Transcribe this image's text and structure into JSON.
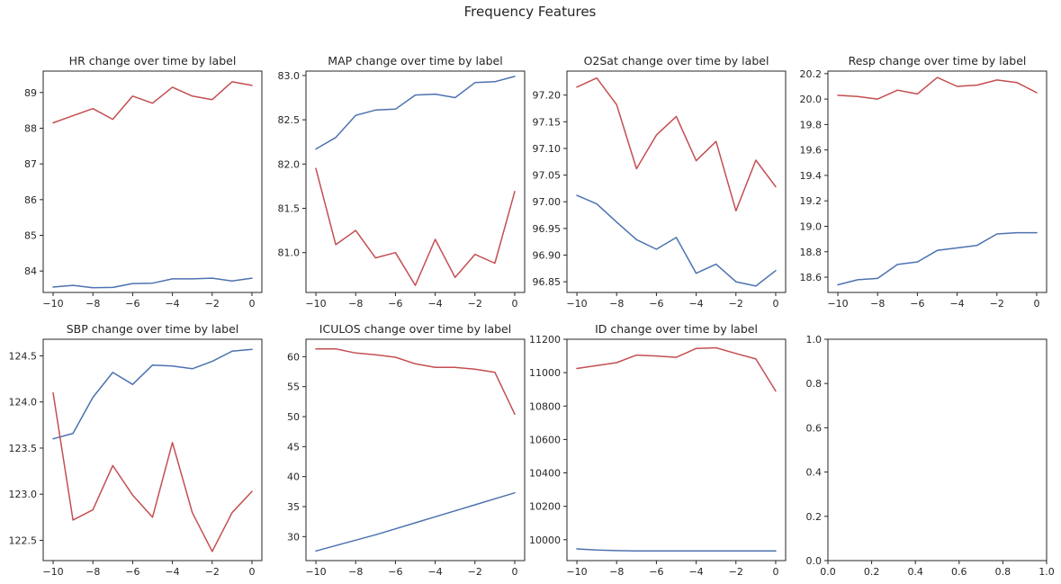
{
  "figure": {
    "title": "Frequency Features"
  },
  "colors": {
    "series_a": "#c44e52",
    "series_b": "#4c72b0"
  },
  "chart_data": [
    {
      "type": "line",
      "title": "HR change over time by label",
      "xlabel": "",
      "ylabel": "",
      "xlim": [
        -10.5,
        0.5
      ],
      "ylim": [
        83.4,
        89.6
      ],
      "xticks": [
        -10,
        -8,
        -6,
        -4,
        -2,
        0
      ],
      "yticks": [
        84,
        85,
        86,
        87,
        88,
        89
      ],
      "ytick_labels": [
        "84",
        "85",
        "86",
        "87",
        "88",
        "89"
      ],
      "x": [
        -10,
        -9,
        -8,
        -7,
        -6,
        -5,
        -4,
        -3,
        -2,
        -1,
        0
      ],
      "series": [
        {
          "color": "#c44e52",
          "values": [
            88.15,
            88.35,
            88.55,
            88.25,
            88.9,
            88.7,
            89.15,
            88.9,
            88.8,
            89.3,
            89.2
          ]
        },
        {
          "color": "#4c72b0",
          "values": [
            83.55,
            83.6,
            83.53,
            83.54,
            83.65,
            83.66,
            83.78,
            83.78,
            83.8,
            83.72,
            83.8
          ]
        }
      ]
    },
    {
      "type": "line",
      "title": "MAP change over time by label",
      "xlabel": "",
      "ylabel": "",
      "xlim": [
        -10.5,
        0.5
      ],
      "ylim": [
        80.55,
        83.05
      ],
      "xticks": [
        -10,
        -8,
        -6,
        -4,
        -2,
        0
      ],
      "yticks": [
        81.0,
        81.5,
        82.0,
        82.5,
        83.0
      ],
      "ytick_labels": [
        "81.0",
        "81.5",
        "82.0",
        "82.5",
        "83.0"
      ],
      "x": [
        -10,
        -9,
        -8,
        -7,
        -6,
        -5,
        -4,
        -3,
        -2,
        -1,
        0
      ],
      "series": [
        {
          "color": "#4c72b0",
          "values": [
            82.17,
            82.3,
            82.55,
            82.61,
            82.62,
            82.78,
            82.79,
            82.75,
            82.92,
            82.93,
            82.99
          ]
        },
        {
          "color": "#c44e52",
          "values": [
            81.95,
            81.09,
            81.25,
            80.94,
            81.0,
            80.63,
            81.15,
            80.72,
            80.98,
            80.88,
            81.69
          ]
        }
      ]
    },
    {
      "type": "line",
      "title": "O2Sat change over time by label",
      "xlabel": "",
      "ylabel": "",
      "xlim": [
        -10.5,
        0.5
      ],
      "ylim": [
        96.83,
        97.245
      ],
      "xticks": [
        -10,
        -8,
        -6,
        -4,
        -2,
        0
      ],
      "yticks": [
        96.85,
        96.9,
        96.95,
        97.0,
        97.05,
        97.1,
        97.15,
        97.2
      ],
      "ytick_labels": [
        "96.85",
        "96.90",
        "96.95",
        "97.00",
        "97.05",
        "97.10",
        "97.15",
        "97.20"
      ],
      "x": [
        -10,
        -9,
        -8,
        -7,
        -6,
        -5,
        -4,
        -3,
        -2,
        -1,
        0
      ],
      "series": [
        {
          "color": "#c44e52",
          "values": [
            97.215,
            97.232,
            97.182,
            97.062,
            97.125,
            97.16,
            97.077,
            97.113,
            96.983,
            97.078,
            97.028
          ]
        },
        {
          "color": "#4c72b0",
          "values": [
            97.012,
            96.996,
            96.962,
            96.929,
            96.911,
            96.933,
            96.866,
            96.883,
            96.85,
            96.842,
            96.871
          ]
        }
      ]
    },
    {
      "type": "line",
      "title": "Resp change over time by label",
      "xlabel": "",
      "ylabel": "",
      "xlim": [
        -10.5,
        0.5
      ],
      "ylim": [
        18.48,
        20.22
      ],
      "xticks": [
        -10,
        -8,
        -6,
        -4,
        -2,
        0
      ],
      "yticks": [
        18.6,
        18.8,
        19.0,
        19.2,
        19.4,
        19.6,
        19.8,
        20.0,
        20.2
      ],
      "ytick_labels": [
        "18.6",
        "18.8",
        "19.0",
        "19.2",
        "19.4",
        "19.6",
        "19.8",
        "20.0",
        "20.2"
      ],
      "x": [
        -10,
        -9,
        -8,
        -7,
        -6,
        -5,
        -4,
        -3,
        -2,
        -1,
        0
      ],
      "series": [
        {
          "color": "#c44e52",
          "values": [
            20.03,
            20.02,
            20.0,
            20.07,
            20.04,
            20.17,
            20.1,
            20.11,
            20.15,
            20.13,
            20.05
          ]
        },
        {
          "color": "#4c72b0",
          "values": [
            18.54,
            18.58,
            18.59,
            18.7,
            18.72,
            18.81,
            18.83,
            18.85,
            18.94,
            18.95,
            18.95
          ]
        }
      ]
    },
    {
      "type": "line",
      "title": "SBP change over time by label",
      "xlabel": "",
      "ylabel": "",
      "xlim": [
        -10.5,
        0.5
      ],
      "ylim": [
        122.28,
        124.68
      ],
      "xticks": [
        -10,
        -8,
        -6,
        -4,
        -2,
        0
      ],
      "yticks": [
        122.5,
        123.0,
        123.5,
        124.0,
        124.5
      ],
      "ytick_labels": [
        "122.5",
        "123.0",
        "123.5",
        "124.0",
        "124.5"
      ],
      "x": [
        -10,
        -9,
        -8,
        -7,
        -6,
        -5,
        -4,
        -3,
        -2,
        -1,
        0
      ],
      "series": [
        {
          "color": "#4c72b0",
          "values": [
            123.6,
            123.66,
            124.05,
            124.32,
            124.19,
            124.4,
            124.39,
            124.36,
            124.44,
            124.55,
            124.57
          ]
        },
        {
          "color": "#c44e52",
          "values": [
            124.1,
            122.72,
            122.83,
            123.31,
            122.99,
            122.75,
            123.56,
            122.8,
            122.38,
            122.8,
            123.03
          ]
        }
      ]
    },
    {
      "type": "line",
      "title": "ICULOS change over time by label",
      "xlabel": "",
      "ylabel": "",
      "xlim": [
        -10.5,
        0.5
      ],
      "ylim": [
        26.0,
        62.9
      ],
      "xticks": [
        -10,
        -8,
        -6,
        -4,
        -2,
        0
      ],
      "yticks": [
        30,
        35,
        40,
        45,
        50,
        55,
        60
      ],
      "ytick_labels": [
        "30",
        "35",
        "40",
        "45",
        "50",
        "55",
        "60"
      ],
      "x": [
        -10,
        -9,
        -8,
        -7,
        -6,
        -5,
        -4,
        -3,
        -2,
        -1,
        0
      ],
      "series": [
        {
          "color": "#c44e52",
          "values": [
            61.3,
            61.3,
            60.6,
            60.3,
            59.9,
            58.8,
            58.2,
            58.2,
            57.9,
            57.4,
            50.4
          ]
        },
        {
          "color": "#4c72b0",
          "values": [
            27.6,
            28.5,
            29.4,
            30.3,
            31.3,
            32.3,
            33.3,
            34.3,
            35.3,
            36.3,
            37.3
          ]
        }
      ]
    },
    {
      "type": "line",
      "title": "ID change over time by label",
      "xlabel": "",
      "ylabel": "",
      "xlim": [
        -10.5,
        0.5
      ],
      "ylim": [
        9875,
        11200
      ],
      "xticks": [
        -10,
        -8,
        -6,
        -4,
        -2,
        0
      ],
      "yticks": [
        10000,
        10200,
        10400,
        10600,
        10800,
        11000,
        11200
      ],
      "ytick_labels": [
        "10000",
        "10200",
        "10400",
        "10600",
        "10800",
        "11000",
        "11200"
      ],
      "x": [
        -10,
        -9,
        -8,
        -7,
        -6,
        -5,
        -4,
        -3,
        -2,
        -1,
        0
      ],
      "series": [
        {
          "color": "#c44e52",
          "values": [
            11025,
            11042,
            11060,
            11105,
            11100,
            11092,
            11145,
            11149,
            11115,
            11082,
            10890
          ]
        },
        {
          "color": "#4c72b0",
          "values": [
            9945,
            9938,
            9935,
            9933,
            9933,
            9933,
            9933,
            9933,
            9933,
            9933,
            9933
          ]
        }
      ]
    },
    {
      "type": "line",
      "title": "",
      "xlabel": "",
      "ylabel": "",
      "xlim": [
        0,
        1
      ],
      "ylim": [
        0,
        1
      ],
      "xticks": [
        0,
        0.2,
        0.4,
        0.6,
        0.8,
        1.0
      ],
      "xtick_labels": [
        "0.0",
        "0.2",
        "0.4",
        "0.6",
        "0.8",
        "1.0"
      ],
      "yticks": [
        0,
        0.2,
        0.4,
        0.6,
        0.8,
        1.0
      ],
      "ytick_labels": [
        "0.0",
        "0.2",
        "0.4",
        "0.6",
        "0.8",
        "1.0"
      ],
      "x": [],
      "series": []
    }
  ]
}
